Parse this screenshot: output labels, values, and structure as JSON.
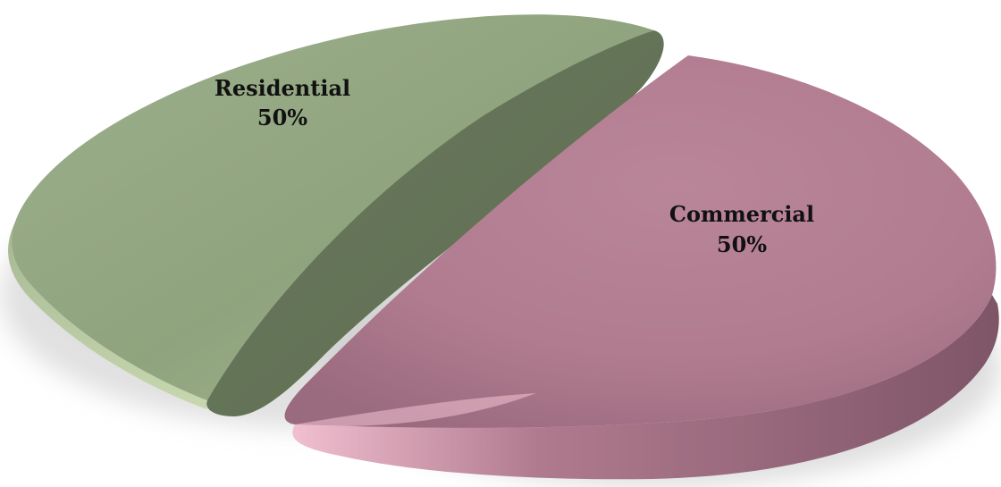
{
  "chart_data": {
    "type": "pie",
    "title": "",
    "slices": [
      {
        "name": "Residential",
        "label": "Residential",
        "value": 50,
        "percent_label": "50%",
        "color": "#8ea37d"
      },
      {
        "name": "Commercial",
        "label": "Commercial",
        "value": 50,
        "percent_label": "50%",
        "color": "#b27d91"
      }
    ],
    "legend": "none",
    "style": "3d-exploded"
  }
}
